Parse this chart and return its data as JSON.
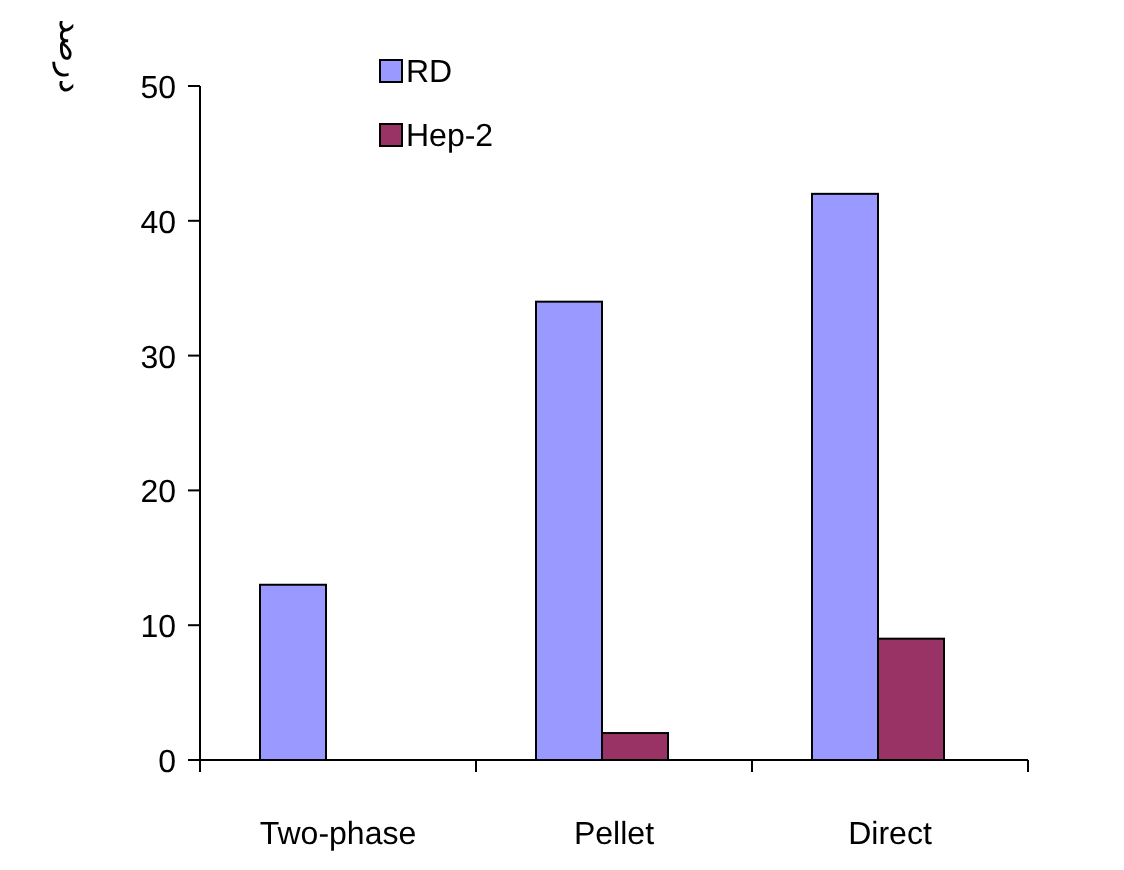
{
  "chart_data": {
    "type": "bar",
    "ylabel": "درصد",
    "categories": [
      "Two-phase",
      "Pellet",
      "Direct"
    ],
    "series": [
      {
        "name": "RD",
        "color": "#9999ff",
        "values": [
          13,
          34,
          42
        ]
      },
      {
        "name": "Hep-2",
        "color": "#993366",
        "values": [
          0,
          2,
          9
        ]
      }
    ],
    "ylim": [
      0,
      50
    ],
    "yticks": [
      0,
      10,
      20,
      30,
      40,
      50
    ],
    "grid": false,
    "legend": "top left"
  }
}
